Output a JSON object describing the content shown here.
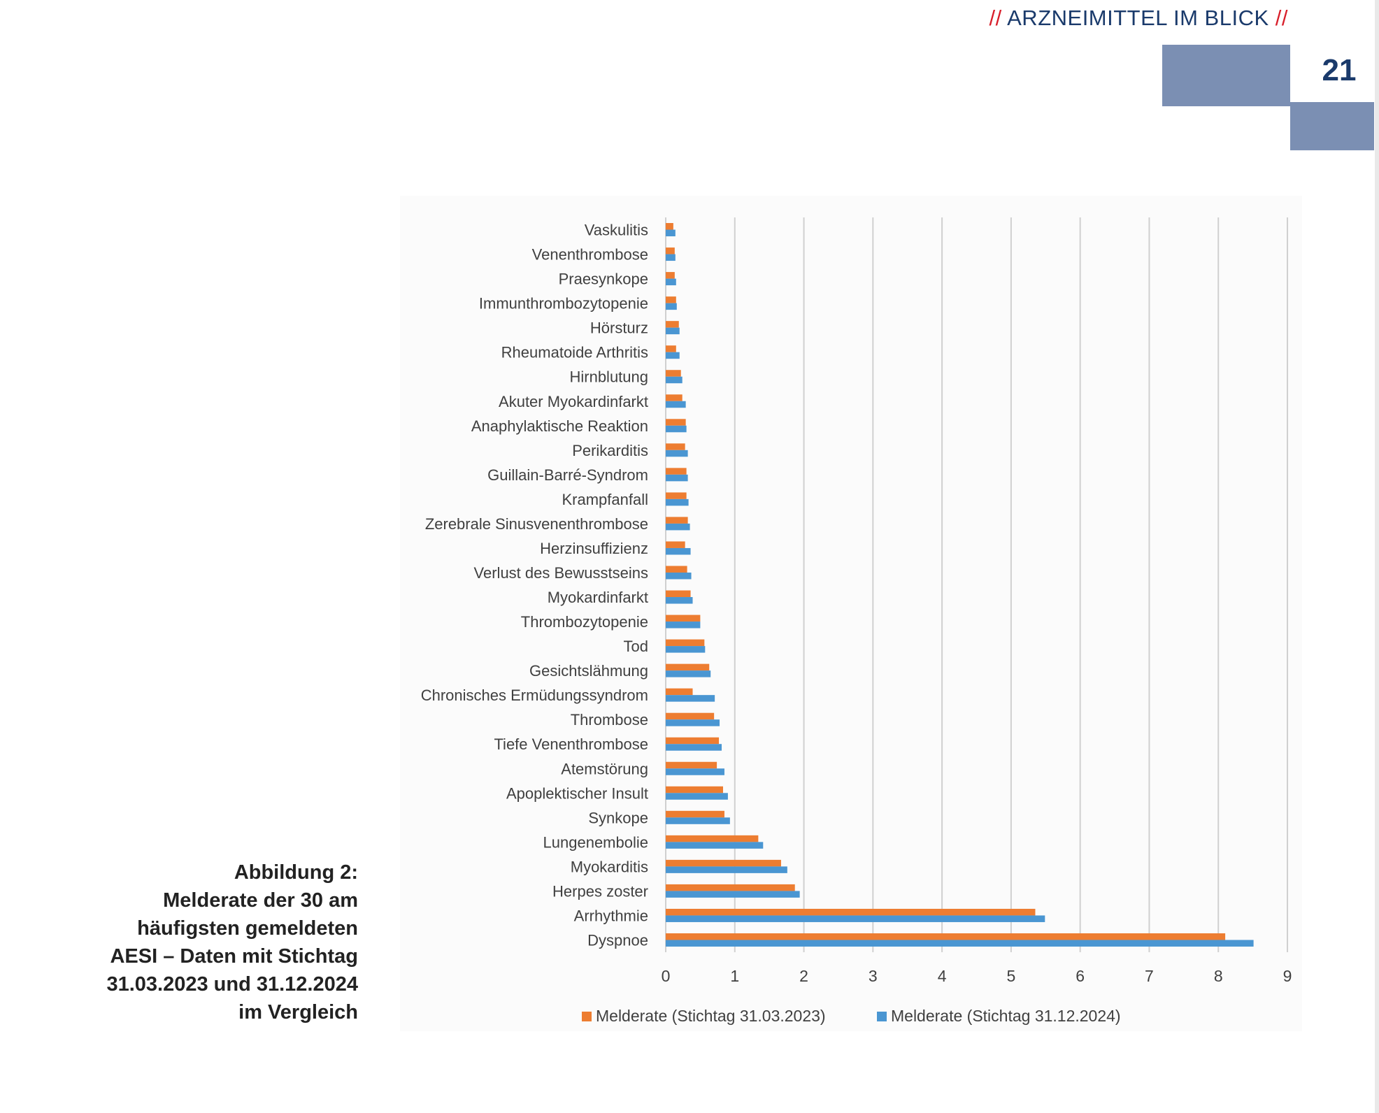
{
  "header": {
    "slash_left": "//",
    "title": "ARZNEIMITTEL IM BLICK",
    "slash_right": "//",
    "page_number": "21"
  },
  "caption": {
    "lines": [
      "Abbildung 2:",
      "Melderate der 30 am",
      "häufigsten gemeldeten",
      "AESI – Daten mit Stichtag",
      "31.03.2023 und 31.12.2024",
      "im Vergleich"
    ]
  },
  "colors": {
    "series1": "#ed7d31",
    "series2": "#4a96d2",
    "grid": "#d0d0d0",
    "header": "#1a3a6b",
    "accent": "#d81e2a",
    "block": "#7b8fb3"
  },
  "chart_data": {
    "type": "bar",
    "orientation": "horizontal",
    "title": "",
    "xlabel": "",
    "ylabel": "",
    "xlim": [
      0,
      9
    ],
    "xticks": [
      "0",
      "1",
      "2",
      "3",
      "4",
      "5",
      "6",
      "7",
      "8",
      "9"
    ],
    "grid": true,
    "legend": "bottom",
    "categories": [
      "Vaskulitis",
      "Venenthrombose",
      "Praesynkope",
      "Immunthrombozytopenie",
      "Hörsturz",
      "Rheumatoide Arthritis",
      "Hirnblutung",
      "Akuter Myokardinfarkt",
      "Anaphylaktische Reaktion",
      "Perikarditis",
      "Guillain-Barré-Syndrom",
      "Krampfanfall",
      "Zerebrale Sinusvenenthrombose",
      "Herzinsuffizienz",
      "Verlust des Bewusstseins",
      "Myokardinfarkt",
      "Thrombozytopenie",
      "Tod",
      "Gesichtslähmung",
      "Chronisches Ermüdungssyndrom",
      "Thrombose",
      "Tiefe Venenthrombose",
      "Atemstörung",
      "Apoplektischer Insult",
      "Synkope",
      "Lungenembolie",
      "Myokarditis",
      "Herpes zoster",
      "Arrhythmie",
      "Dyspnoe"
    ],
    "series": [
      {
        "name": "Melderate (Stichtag 31.03.2023)",
        "values": [
          0.11,
          0.13,
          0.13,
          0.15,
          0.19,
          0.15,
          0.22,
          0.24,
          0.29,
          0.28,
          0.3,
          0.3,
          0.32,
          0.28,
          0.31,
          0.36,
          0.5,
          0.56,
          0.63,
          0.39,
          0.7,
          0.77,
          0.74,
          0.83,
          0.85,
          1.34,
          1.67,
          1.87,
          5.35,
          8.1
        ]
      },
      {
        "name": "Melderate (Stichtag 31.12.2024)",
        "values": [
          0.14,
          0.14,
          0.15,
          0.16,
          0.2,
          0.2,
          0.24,
          0.29,
          0.3,
          0.32,
          0.32,
          0.33,
          0.35,
          0.36,
          0.37,
          0.39,
          0.5,
          0.57,
          0.65,
          0.71,
          0.78,
          0.81,
          0.85,
          0.9,
          0.93,
          1.41,
          1.76,
          1.94,
          5.49,
          8.51
        ]
      }
    ]
  }
}
